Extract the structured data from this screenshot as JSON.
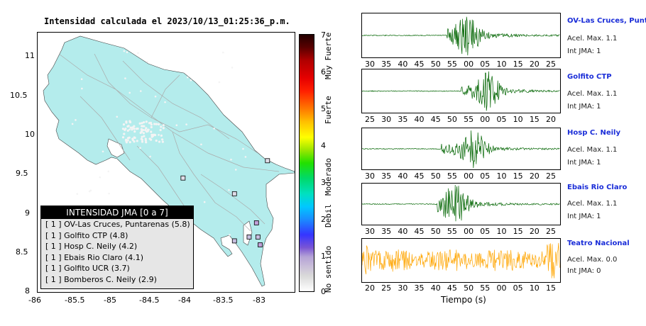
{
  "title": "Intensidad calculada el 2023/10/13_01:25:36_p.m.",
  "map": {
    "lon_ticks": [
      "-86",
      "-85.5",
      "-85",
      "-84.5",
      "-84",
      "-83.5",
      "-83"
    ],
    "lat_ticks": [
      "11",
      "10.5",
      "10",
      "9.5",
      "9",
      "8.5",
      "8"
    ],
    "land_color": "#b4ecec",
    "station_markers": [
      {
        "lon": -83.0,
        "lat": 8.83,
        "color": "#c1a0d8"
      },
      {
        "lon": -82.95,
        "lat": 8.55,
        "color": "#c1a0d8"
      },
      {
        "lon": -82.98,
        "lat": 8.65,
        "color": "#c8bfe0"
      },
      {
        "lon": -83.1,
        "lat": 8.65,
        "color": "#c8bfe0"
      },
      {
        "lon": -83.3,
        "lat": 8.6,
        "color": "#c8bfe0"
      },
      {
        "lon": -83.3,
        "lat": 9.2,
        "color": "#e0dde8"
      },
      {
        "lon": -84.0,
        "lat": 9.4,
        "color": "#e0dde8"
      },
      {
        "lon": -82.85,
        "lat": 9.62,
        "color": "#e0dde8"
      }
    ]
  },
  "legend": {
    "title": "INTENSIDAD JMA [0 a 7]",
    "items": [
      "[ 1 ] OV-Las Cruces, Puntarenas (5.8)",
      "[ 1 ] Golfito CTP (4.8)",
      "[ 1 ] Hosp C. Neily (4.2)",
      "[ 1 ] Ebais Rio Claro (4.1)",
      "[ 1 ] Golfito UCR (3.7)",
      "[ 1 ] Bomberos C. Neily (2.9)"
    ]
  },
  "colorbar": {
    "ticks": [
      "7",
      "6",
      "5",
      "4",
      "3",
      "2",
      "1",
      "0"
    ],
    "labels": [
      "Muy Fuerte",
      "Fuerte",
      "Moderado",
      "Debil",
      "No sentido"
    ]
  },
  "stations": [
    {
      "name": "OV-Las Cruces, Puntar",
      "accel": "Acel. Max. 1.1",
      "jma": "Int JMA: 1",
      "ticks": [
        "30",
        "35",
        "40",
        "45",
        "50",
        "55",
        "00",
        "05",
        "10",
        "15",
        "20",
        "25"
      ],
      "color": "#006400",
      "onset": 0.43,
      "peak": 0.53
    },
    {
      "name": "Golfito CTP",
      "accel": "Acel. Max. 1.1",
      "jma": "Int JMA: 1",
      "ticks": [
        "25",
        "30",
        "35",
        "40",
        "45",
        "50",
        "55",
        "00",
        "05",
        "10",
        "15",
        "20"
      ],
      "color": "#006400",
      "onset": 0.5,
      "peak": 0.63
    },
    {
      "name": "Hosp C. Neily",
      "accel": "Acel. Max. 1.1",
      "jma": "Int JMA: 1",
      "ticks": [
        "30",
        "35",
        "40",
        "45",
        "50",
        "55",
        "00",
        "05",
        "10",
        "15",
        "20",
        "25"
      ],
      "color": "#006400",
      "onset": 0.4,
      "peak": 0.56
    },
    {
      "name": "Ebais Rio Claro",
      "accel": "Acel. Max. 1.1",
      "jma": "Int JMA: 1",
      "ticks": [
        "30",
        "35",
        "40",
        "45",
        "50",
        "55",
        "00",
        "05",
        "10",
        "15",
        "20",
        "25"
      ],
      "color": "#006400",
      "onset": 0.38,
      "peak": 0.47
    },
    {
      "name": "Teatro Nacional",
      "accel": "Acel. Max. 0.0",
      "jma": "Int JMA: 0",
      "ticks": [
        "20",
        "25",
        "30",
        "35",
        "40",
        "45",
        "50",
        "55",
        "00",
        "05",
        "10",
        "15"
      ],
      "color": "#ffa500",
      "onset": 0.0,
      "peak": 0.5
    }
  ],
  "xaxis_label": "Tiempo (s)"
}
